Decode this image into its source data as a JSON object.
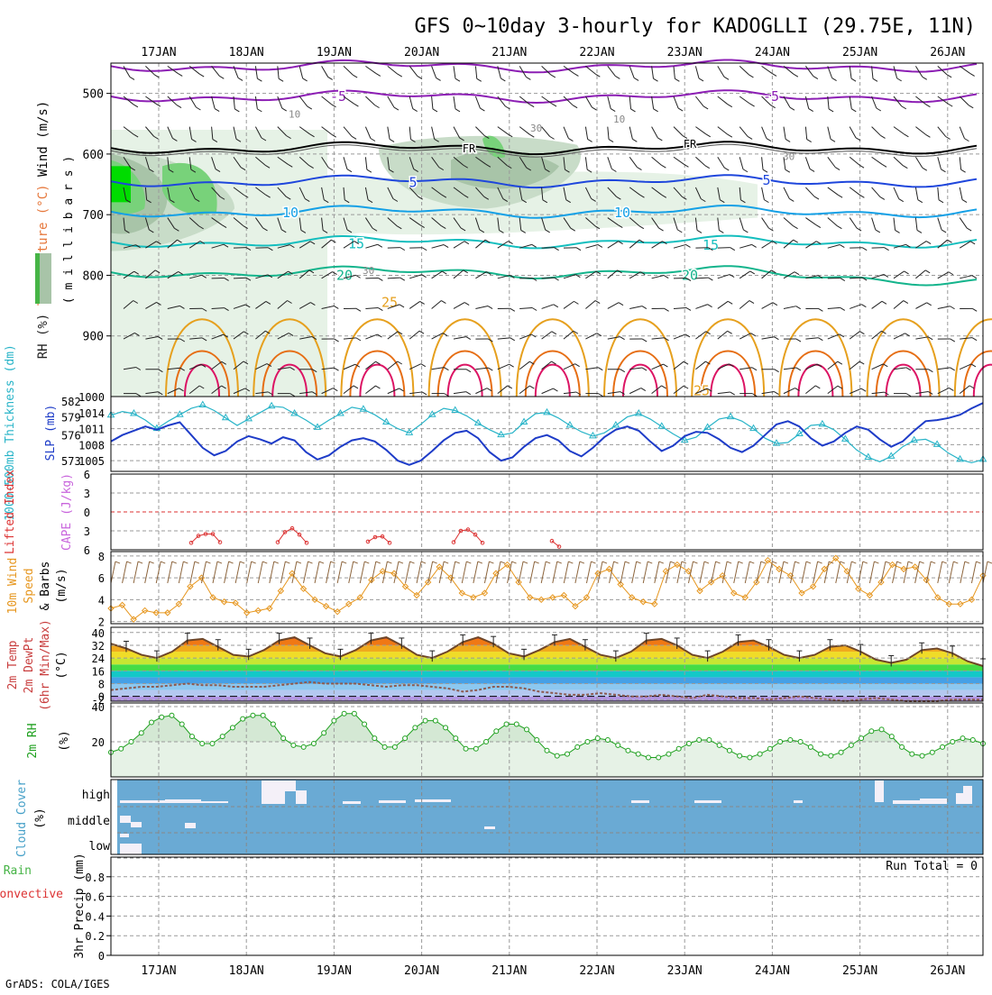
{
  "title": "GFS 0~10day 3-hourly for KADOGLLI (29.75E, 11N)",
  "credit": "GrADS: COLA/IGES",
  "colors": {
    "grid": "#9a9a9a",
    "frame": "#000000",
    "rh_light": "#e6f2e6",
    "rh_mid": "#c8dcc8",
    "rh_dark": "#a8c4a8",
    "rh_green": "#78d27a",
    "rh_bright": "#00dc00",
    "temp_neg5": "#8c1eb4",
    "temp_fr": "#000000",
    "temp_5": "#1e46dc",
    "temp_10": "#14a0e6",
    "temp_15": "#14bebe",
    "temp_20": "#14b48c",
    "temp_25": "#e6a01e",
    "temp_30": "#e66e14",
    "temp_35": "#dc1464",
    "slp": "#1e3cc8",
    "thickness": "#28b4c8",
    "lifted": "#dc3232",
    "cape": "#c864dc",
    "wind10": "#e6961e",
    "barb": "#8c643c",
    "dewpt": "#8c5a50",
    "rh2m_line": "#1ea01e",
    "rh2m_fill": "#d4e8d4",
    "cloud_blue": "#6aaad4",
    "cloud_white": "#f4f0f8"
  },
  "chart_data": {
    "type": "meteogram",
    "x_axis": {
      "tick_labels": [
        "17JAN",
        "18JAN",
        "19JAN",
        "20JAN",
        "21JAN",
        "22JAN",
        "23JAN",
        "24JAN",
        "25JAN",
        "26JAN"
      ]
    },
    "panels": [
      {
        "id": "upper_air",
        "type": "contour",
        "ylabel_parts": [
          "RH (%)",
          "Temperature (°C)",
          "Wind (m/s)"
        ],
        "ylabel2": "( m i l l i b a r s )",
        "y_ticks": [
          500,
          600,
          700,
          800,
          900
        ],
        "ylim": [
          1000,
          450
        ],
        "temperature_contours": [
          {
            "label": "-5",
            "pressure": [
              455,
              505
            ]
          },
          {
            "label": "FR",
            "pressure": [
              590
            ]
          },
          {
            "label": "5",
            "pressure": [
              645
            ]
          },
          {
            "label": "10",
            "pressure": [
              695
            ]
          },
          {
            "label": "15",
            "pressure": [
              745
            ]
          },
          {
            "label": "20",
            "pressure": [
              795
            ]
          },
          {
            "label": "25",
            "pressure": [
              845
            ]
          }
        ],
        "rh_labels": [
          "10",
          "30"
        ]
      },
      {
        "id": "slp_thickness",
        "type": "line",
        "ylabel_left": "1000-500mb Thickness (dm)",
        "ylabel_right": "SLP (mb)",
        "left_ticks": [
          573,
          576,
          579,
          582
        ],
        "right_ticks": [
          1005,
          1008,
          1011,
          1014,
          1000
        ],
        "series": [
          {
            "name": "1000-500mb Thickness (dm)",
            "values": [
              1013.5,
              1014.2,
              1013.8,
              1012.6,
              1011.0,
              1012.4,
              1013.6,
              1014.8,
              1015.4,
              1014.4,
              1013.0,
              1011.6,
              1012.8,
              1014.0,
              1015.2,
              1015.0,
              1013.8,
              1012.6,
              1011.2,
              1012.6,
              1013.8,
              1015.0,
              1014.6,
              1013.6,
              1012.2,
              1011.0,
              1010.2,
              1011.8,
              1013.6,
              1014.8,
              1014.4,
              1013.4,
              1012.0,
              1010.8,
              1009.8,
              1010.2,
              1012.2,
              1013.8,
              1014.0,
              1013.0,
              1011.6,
              1010.4,
              1009.6,
              1010.2,
              1011.6,
              1013.2,
              1013.8,
              1012.8,
              1011.4,
              1010.0,
              1008.8,
              1009.4,
              1011.2,
              1012.8,
              1013.2,
              1012.4,
              1011.0,
              1009.2,
              1008.2,
              1008.4,
              1010.0,
              1011.6,
              1011.8,
              1010.8,
              1009.0,
              1007.0,
              1005.6,
              1004.8,
              1005.8,
              1007.6,
              1008.8,
              1009.0,
              1008.0,
              1006.4,
              1005.2,
              1004.6,
              1005.2
            ]
          },
          {
            "name": "SLP (mb)",
            "values": [
              1008.6,
              1009.8,
              1010.6,
              1011.4,
              1010.8,
              1011.6,
              1012.2,
              1009.8,
              1007.4,
              1006.0,
              1006.8,
              1008.6,
              1009.6,
              1009.0,
              1008.2,
              1009.4,
              1008.8,
              1006.6,
              1005.2,
              1006.0,
              1007.6,
              1008.8,
              1009.2,
              1008.6,
              1007.0,
              1005.0,
              1004.2,
              1005.0,
              1006.8,
              1008.8,
              1010.2,
              1010.6,
              1009.2,
              1006.6,
              1005.0,
              1005.6,
              1007.6,
              1009.2,
              1009.8,
              1008.8,
              1006.8,
              1005.8,
              1007.4,
              1009.4,
              1010.8,
              1011.4,
              1010.6,
              1008.6,
              1006.8,
              1007.8,
              1009.6,
              1010.4,
              1010.2,
              1009.0,
              1007.4,
              1006.6,
              1007.8,
              1009.8,
              1011.8,
              1012.4,
              1011.4,
              1009.2,
              1007.8,
              1008.6,
              1010.2,
              1011.4,
              1010.8,
              1009.0,
              1007.6,
              1008.6,
              1010.6,
              1012.4,
              1012.6,
              1013.0,
              1013.6,
              1014.8,
              1015.8
            ]
          }
        ]
      },
      {
        "id": "stability",
        "type": "line",
        "ylabel_left": "Lifted Index",
        "ylabel_right": "CAPE (J/kg)",
        "y_ticks": [
          -6,
          -3,
          0,
          3,
          6
        ],
        "ylim": [
          6,
          -6
        ],
        "cape_bumps": [
          {
            "values": [
              4.9,
              3.8,
              3.5,
              3.5,
              4.8
            ]
          },
          {
            "values": [
              4.8,
              3.2,
              2.6,
              3.6,
              4.9
            ]
          },
          {
            "values": [
              4.7,
              4.0,
              3.9,
              4.9
            ]
          },
          {
            "values": [
              4.8,
              3.0,
              2.8,
              3.6,
              4.9
            ]
          },
          {
            "values": [
              4.6,
              5.5
            ]
          }
        ]
      },
      {
        "id": "wind10m",
        "type": "line",
        "ylabel_parts": [
          "10m Wind",
          "Speed",
          "& Barbs",
          "(m/s)"
        ],
        "y_ticks": [
          2,
          4,
          6,
          8
        ],
        "ylim": [
          2,
          8
        ],
        "series": [
          {
            "name": "Speed",
            "values": [
              3.2,
              3.5,
              2.2,
              3.0,
              2.8,
              2.8,
              3.6,
              5.2,
              6.0,
              4.2,
              3.8,
              3.7,
              2.8,
              3.0,
              3.2,
              4.8,
              6.4,
              5.0,
              4.0,
              3.4,
              2.9,
              3.6,
              4.2,
              5.8,
              6.6,
              6.4,
              5.2,
              4.4,
              5.6,
              7.0,
              6.0,
              4.6,
              4.2,
              4.6,
              6.4,
              7.2,
              5.6,
              4.2,
              4.0,
              4.2,
              4.4,
              3.4,
              4.2,
              6.4,
              6.8,
              5.4,
              4.2,
              3.8,
              3.6,
              6.6,
              7.2,
              6.6,
              4.8,
              5.6,
              6.2,
              4.6,
              4.2,
              5.6,
              7.6,
              6.8,
              6.2,
              4.6,
              5.2,
              6.8,
              7.8,
              6.6,
              5.0,
              4.4,
              5.6,
              7.2,
              6.8,
              7.0,
              5.8,
              4.2,
              3.6,
              3.6,
              4.0,
              6.2
            ]
          }
        ]
      },
      {
        "id": "temp2m",
        "type": "area",
        "ylabel_parts": [
          "2m Temp",
          "2m DewPt",
          "(6hr Min/Max)",
          "(°C)"
        ],
        "y_ticks": [
          -2,
          0,
          8,
          16,
          24,
          32,
          40
        ],
        "ylim": [
          -3,
          41
        ],
        "series": [
          {
            "name": "2m Temp",
            "values": [
              33,
              30,
              26,
              24,
              28,
              35,
              36,
              31,
              26,
              25,
              29,
              35,
              37,
              32,
              27,
              25,
              29,
              35,
              37,
              32,
              26,
              24,
              28,
              34,
              37,
              33,
              27,
              25,
              29,
              34,
              36,
              31,
              26,
              24,
              28,
              35,
              36,
              32,
              26,
              24,
              28,
              34,
              35,
              31,
              26,
              24,
              26,
              31,
              32,
              28,
              23,
              21,
              23,
              29,
              30,
              27,
              22,
              19
            ]
          },
          {
            "name": "2m DewPt",
            "values": [
              4,
              5,
              6,
              6,
              7,
              8,
              7,
              7,
              6,
              6,
              6,
              7,
              8,
              9,
              8,
              8,
              8,
              7,
              6,
              7,
              7,
              6,
              5,
              3,
              4,
              6,
              6,
              5,
              3,
              2,
              1,
              1,
              2,
              1,
              0,
              0,
              1,
              0,
              -1,
              1,
              0,
              -1,
              -1,
              -2,
              -1,
              0,
              -1,
              -2,
              -3,
              -2,
              -1,
              -2,
              -3,
              -3,
              -3,
              -2,
              -2,
              -2
            ]
          }
        ]
      },
      {
        "id": "rh2m",
        "type": "area",
        "ylabel": "2m RH",
        "unit": "(%)",
        "y_ticks": [
          20,
          40
        ],
        "ylim": [
          0,
          40
        ],
        "series": [
          {
            "name": "2m RH",
            "values": [
              14,
              16,
              20,
              25,
              31,
              34,
              35,
              30,
              23,
              19,
              19,
              23,
              28,
              33,
              35,
              35,
              30,
              22,
              18,
              17,
              19,
              25,
              32,
              36,
              36,
              30,
              22,
              17,
              17,
              22,
              28,
              32,
              32,
              28,
              22,
              16,
              16,
              20,
              26,
              30,
              30,
              27,
              21,
              15,
              12,
              13,
              17,
              20,
              22,
              21,
              18,
              15,
              13,
              11,
              11,
              13,
              16,
              19,
              21,
              21,
              18,
              15,
              12,
              11,
              13,
              16,
              20,
              21,
              20,
              17,
              13,
              12,
              14,
              18,
              22,
              26,
              27,
              23,
              17,
              13,
              12,
              14,
              17,
              20,
              22,
              21,
              19
            ]
          }
        ]
      },
      {
        "id": "cloud",
        "type": "heatmap",
        "ylabel_parts": [
          "Cloud Cover",
          "(%)"
        ],
        "rows": [
          "high",
          "middle",
          "low"
        ]
      },
      {
        "id": "precip",
        "type": "bar",
        "ylabel_parts": [
          "Total / Rain",
          "Convective",
          "3hr Precip (mm)"
        ],
        "y_ticks": [
          0,
          0.2,
          0.4,
          0.6,
          0.8
        ],
        "ylim": [
          0,
          1
        ],
        "annotation": "Run Total = 0",
        "values": []
      }
    ]
  }
}
